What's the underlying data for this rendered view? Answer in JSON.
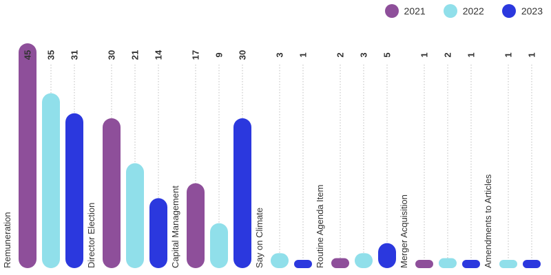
{
  "chart_data": {
    "type": "bar",
    "title": "",
    "xlabel": "",
    "ylabel": "",
    "ylim": [
      0,
      45
    ],
    "grid": true,
    "legend_position": "top-right",
    "categories": [
      "Remuneration",
      "Director Election",
      "Capital Management",
      "Say on Climate",
      "Routine Agenda Item",
      "Merger Acquisition",
      "Amendments to Articles"
    ],
    "series": [
      {
        "name": "2021",
        "color": "#8e4f9a",
        "values": [
          45,
          30,
          17,
          null,
          2,
          1,
          null
        ]
      },
      {
        "name": "2022",
        "color": "#90dfea",
        "values": [
          35,
          21,
          9,
          3,
          3,
          2,
          1
        ]
      },
      {
        "name": "2023",
        "color": "#2b38de",
        "values": [
          31,
          14,
          30,
          1,
          5,
          1,
          1
        ]
      }
    ]
  }
}
